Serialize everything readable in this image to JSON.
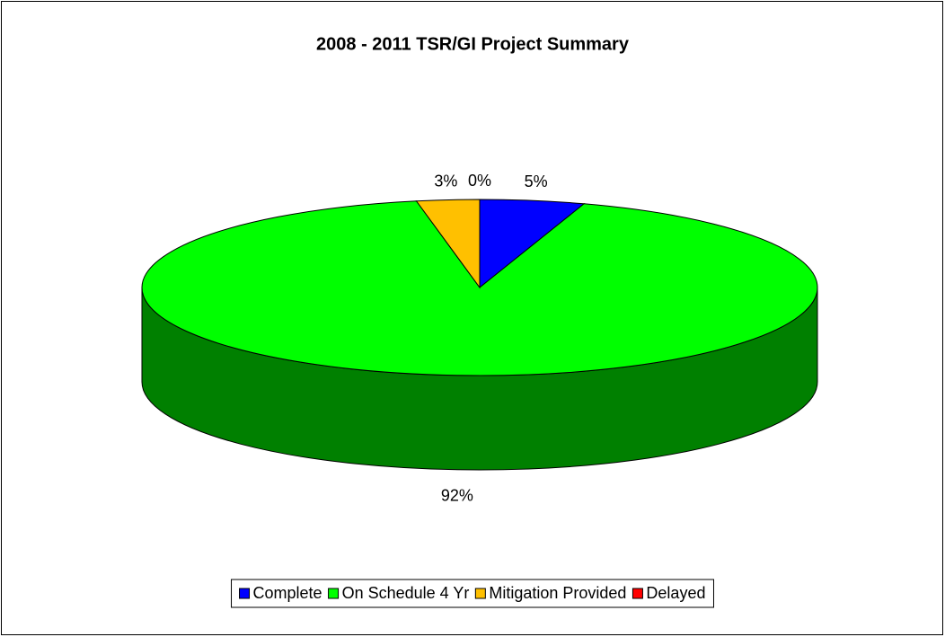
{
  "chart_data": {
    "type": "pie",
    "title": "2008 - 2011 TSR/GI Project Summary",
    "categories": [
      "Complete",
      "On Schedule 4 Yr",
      "Mitigation Provided",
      "Delayed"
    ],
    "values": [
      5,
      92,
      3,
      0
    ],
    "value_labels": [
      "5%",
      "92%",
      "3%",
      "0%"
    ],
    "colors": [
      "#0000ff",
      "#00ff00",
      "#ffc000",
      "#ff0000"
    ],
    "legend": "bottom"
  }
}
